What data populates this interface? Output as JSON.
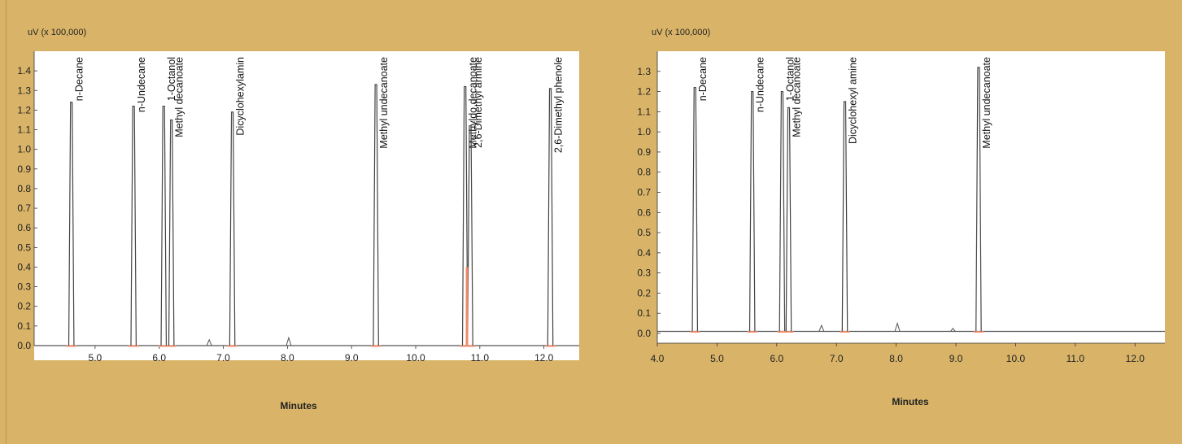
{
  "chart_data": [
    {
      "type": "line",
      "ylabel": "uV (x 100,000)",
      "xlabel": "Minutes",
      "xlim": [
        4.05,
        12.55
      ],
      "ylim": [
        -0.03,
        1.5
      ],
      "xticks": [
        5.0,
        6.0,
        7.0,
        8.0,
        9.0,
        10.0,
        11.0,
        12.0
      ],
      "yticks": [
        0.0,
        0.1,
        0.2,
        0.3,
        0.4,
        0.5,
        0.6,
        0.7,
        0.8,
        0.9,
        1.0,
        1.1,
        1.2,
        1.3,
        1.4
      ],
      "grid": false,
      "baseline": 0.0,
      "peaks": [
        {
          "name": "n-Decane",
          "x": 4.63,
          "y": 1.24
        },
        {
          "name": "n-Undecane",
          "x": 5.6,
          "y": 1.22
        },
        {
          "name": "1-Octanol",
          "x": 6.07,
          "y": 1.22
        },
        {
          "name": "Methyl decanoate",
          "x": 6.19,
          "y": 1.15
        },
        {
          "name": "Dicyclohexylamin",
          "x": 7.14,
          "y": 1.19
        },
        {
          "name": "Methyl undecanoate",
          "x": 9.38,
          "y": 1.33
        },
        {
          "name": "Methyldo decanoate",
          "x": 10.77,
          "y": 1.32
        },
        {
          "name": "2,6-Dimethyl armine",
          "x": 10.85,
          "y": 1.12
        },
        {
          "name": "2,6-Dimethyl phenole",
          "x": 12.1,
          "y": 1.31
        }
      ],
      "minor_peaks": [
        {
          "x": 6.78,
          "y": 0.03
        },
        {
          "x": 8.02,
          "y": 0.04
        }
      ]
    },
    {
      "type": "line",
      "ylabel": "uV (x 100,000)",
      "xlabel": "Minutes",
      "xlim": [
        4.0,
        12.5
      ],
      "ylim": [
        -0.03,
        1.4
      ],
      "xticks": [
        4.0,
        5.0,
        6.0,
        7.0,
        8.0,
        9.0,
        10.0,
        11.0,
        12.0
      ],
      "yticks": [
        0.0,
        0.1,
        0.2,
        0.3,
        0.4,
        0.5,
        0.6,
        0.7,
        0.8,
        0.9,
        1.0,
        1.1,
        1.2,
        1.3
      ],
      "grid": false,
      "baseline": 0.01,
      "peaks": [
        {
          "name": "n-Decane",
          "x": 4.63,
          "y": 1.22
        },
        {
          "name": "n-Undecane",
          "x": 5.59,
          "y": 1.2
        },
        {
          "name": "1-Octanol",
          "x": 6.09,
          "y": 1.2
        },
        {
          "name": "Methyl decanoate",
          "x": 6.2,
          "y": 1.12
        },
        {
          "name": "Dicyclohexyl amine",
          "x": 7.14,
          "y": 1.15
        },
        {
          "name": "Methyl undecanoate",
          "x": 9.38,
          "y": 1.32
        }
      ],
      "minor_peaks": [
        {
          "x": 6.75,
          "y": 0.03
        },
        {
          "x": 8.02,
          "y": 0.04
        },
        {
          "x": 8.95,
          "y": 0.015
        }
      ]
    }
  ]
}
